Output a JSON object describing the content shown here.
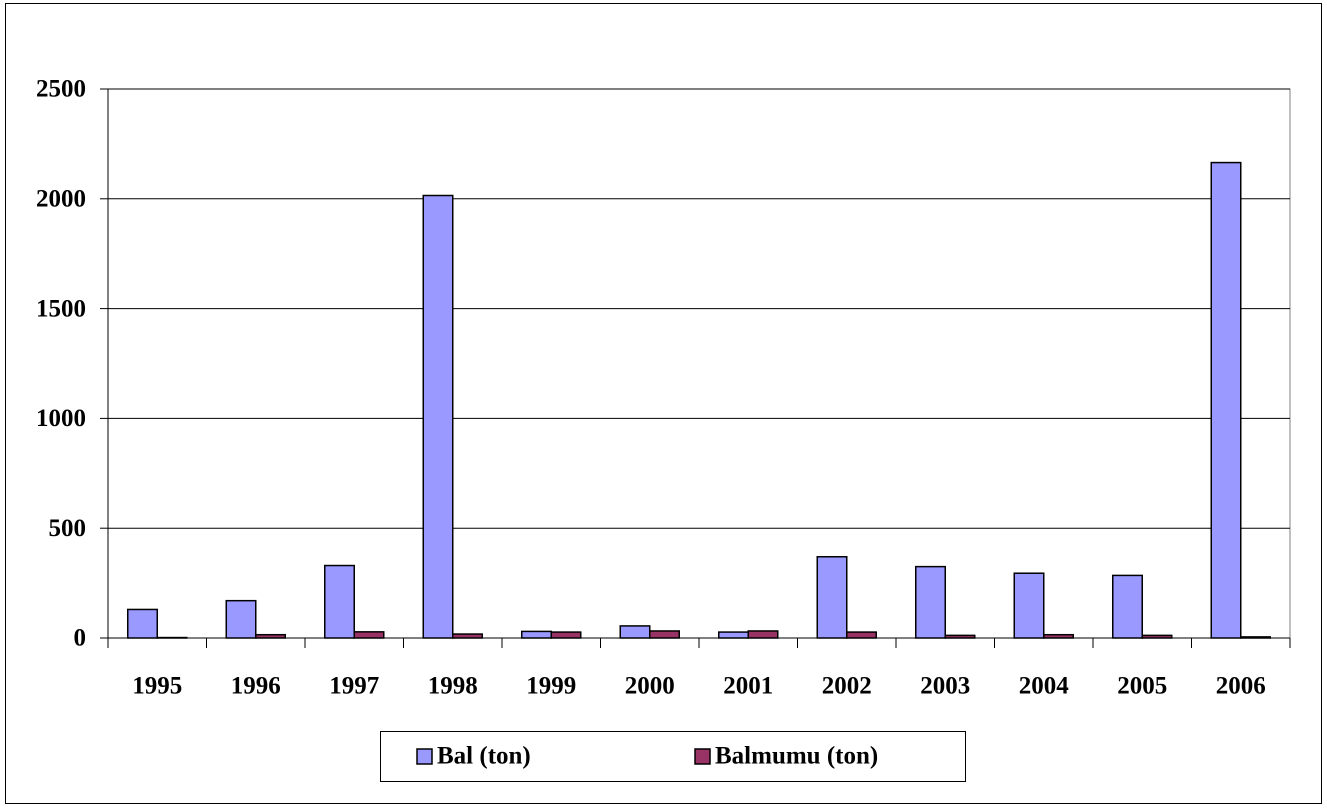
{
  "chart_data": {
    "type": "bar",
    "categories": [
      "1995",
      "1996",
      "1997",
      "1998",
      "1999",
      "2000",
      "2001",
      "2002",
      "2003",
      "2004",
      "2005",
      "2006"
    ],
    "series": [
      {
        "name": "Bal (ton)",
        "color": "#9999ff",
        "values": [
          130,
          170,
          330,
          2015,
          30,
          55,
          27,
          370,
          325,
          295,
          285,
          2165
        ]
      },
      {
        "name": "Balmumu (ton)",
        "color": "#993366",
        "values": [
          2,
          15,
          28,
          18,
          27,
          32,
          32,
          27,
          12,
          15,
          12,
          5
        ]
      }
    ],
    "ylim": [
      0,
      2500
    ],
    "yticks": [
      0,
      500,
      1000,
      1500,
      2000,
      2500
    ],
    "grid": true,
    "legend": "bottom"
  }
}
